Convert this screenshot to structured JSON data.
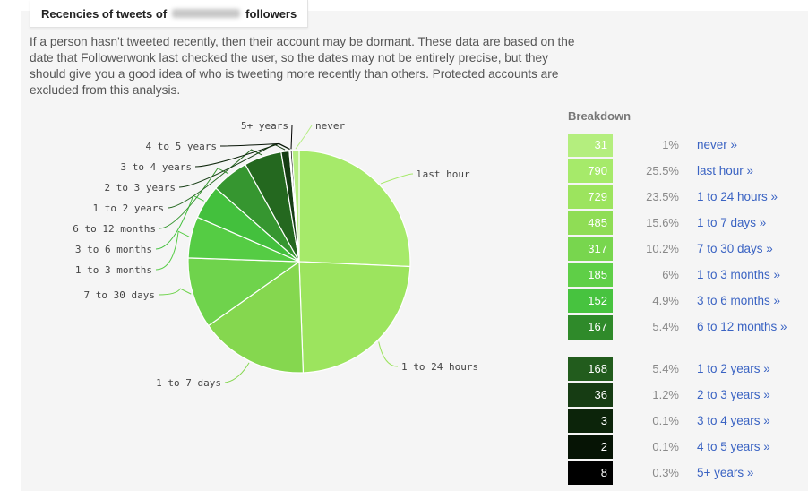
{
  "header": {
    "title_prefix": "Recencies of tweets of",
    "title_suffix": "followers"
  },
  "description": "If a person hasn't tweeted recently, then their account may be dormant. These data are based on the date that Followerwonk last checked the user, so the dates may not be entirely precise, but they should give you a good idea of who is tweeting more recently than others. Protected accounts are excluded from this analysis.",
  "breakdown_title": "Breakdown",
  "chart_data": {
    "type": "pie",
    "title": "",
    "slices": [
      {
        "label": "last hour",
        "value": 790,
        "color": "#a6ea6a"
      },
      {
        "label": "1 to 24 hours",
        "value": 729,
        "color": "#9ce45e"
      },
      {
        "label": "1 to 7 days",
        "value": 485,
        "color": "#85d74f"
      },
      {
        "label": "7 to 30 days",
        "value": 317,
        "color": "#6fd34c"
      },
      {
        "label": "1 to 3 months",
        "value": 185,
        "color": "#55cc44"
      },
      {
        "label": "3 to 6 months",
        "value": 152,
        "color": "#43c03d"
      },
      {
        "label": "6 to 12 months",
        "value": 167,
        "color": "#369630"
      },
      {
        "label": "1 to 2 years",
        "value": 168,
        "color": "#24681f"
      },
      {
        "label": "2 to 3 years",
        "value": 36,
        "color": "#163d14"
      },
      {
        "label": "3 to 4 years",
        "value": 3,
        "color": "#0b2409"
      },
      {
        "label": "4 to 5 years",
        "value": 2,
        "color": "#061305"
      },
      {
        "label": "5+ years",
        "value": 8,
        "color": "#000000"
      },
      {
        "label": "never",
        "value": 31,
        "color": "#b6ee84"
      }
    ]
  },
  "breakdown": [
    {
      "count": "31",
      "percent": "1%",
      "label": "never »",
      "color": "#b4ee7e"
    },
    {
      "count": "790",
      "percent": "25.5%",
      "label": "last hour »",
      "color": "#a6ea6a"
    },
    {
      "count": "729",
      "percent": "23.5%",
      "label": "1 to 24 hours »",
      "color": "#9ce45e"
    },
    {
      "count": "485",
      "percent": "15.6%",
      "label": "1 to 7 days »",
      "color": "#8fdd55"
    },
    {
      "count": "317",
      "percent": "10.2%",
      "label": "7 to 30 days »",
      "color": "#78d64e"
    },
    {
      "count": "185",
      "percent": "6%",
      "label": "1 to 3 months »",
      "color": "#5fcf47"
    },
    {
      "count": "152",
      "percent": "4.9%",
      "label": "3 to 6 months »",
      "color": "#47c33f"
    },
    {
      "count": "167",
      "percent": "5.4%",
      "label": "6 to 12 months »",
      "color": "#2f8a2a"
    },
    {
      "count": "168",
      "percent": "5.4%",
      "label": "1 to 2 years »",
      "color": "#225c1d"
    },
    {
      "count": "36",
      "percent": "1.2%",
      "label": "2 to 3 years »",
      "color": "#163c13"
    },
    {
      "count": "3",
      "percent": "0.1%",
      "label": "3 to 4 years »",
      "color": "#0c240a"
    },
    {
      "count": "2",
      "percent": "0.1%",
      "label": "4 to 5 years »",
      "color": "#061405"
    },
    {
      "count": "8",
      "percent": "0.3%",
      "label": "5+ years »",
      "color": "#000000"
    }
  ]
}
